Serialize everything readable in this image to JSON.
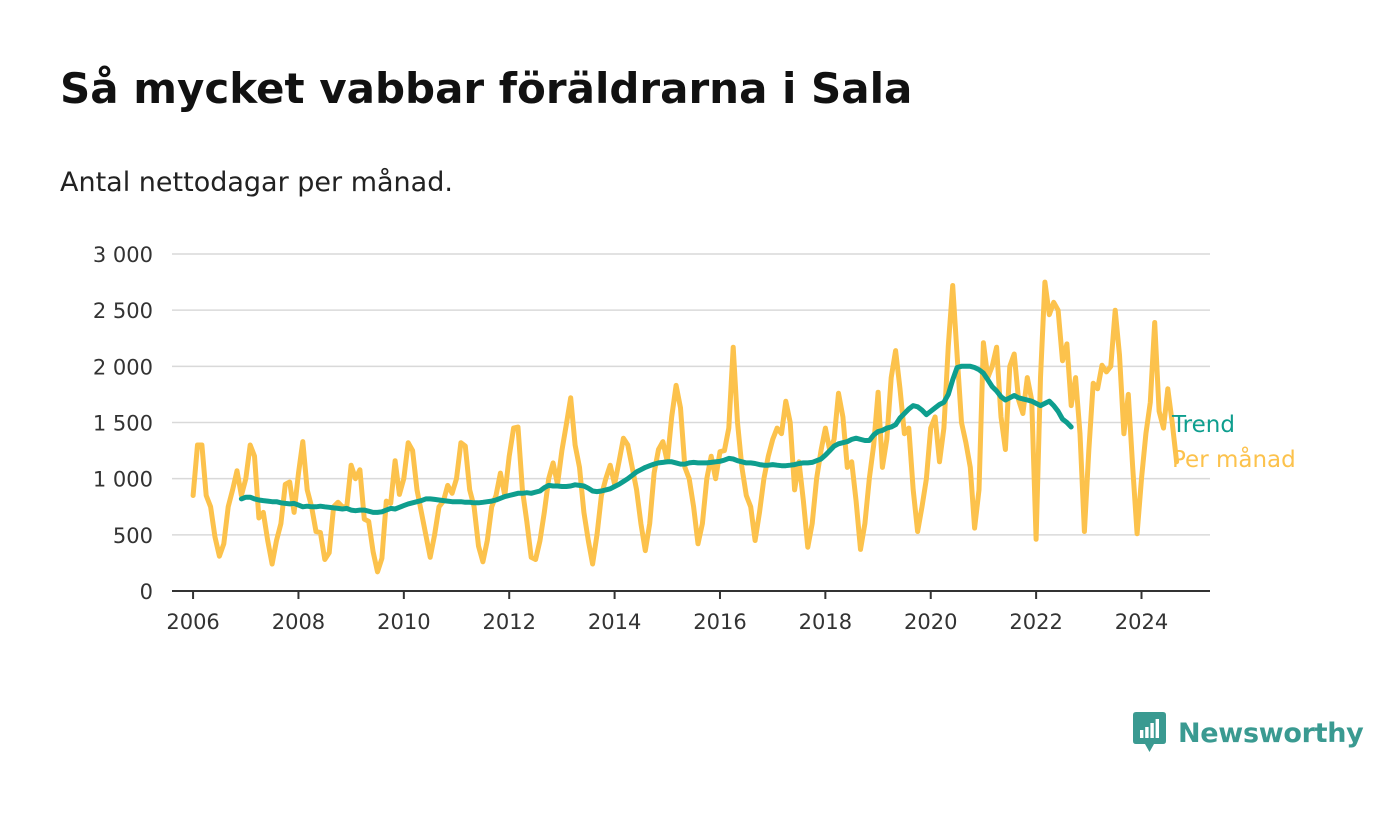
{
  "title": "Så mycket vabbar föräldrarna i Sala",
  "subtitle": "Antal nettodagar per månad.",
  "brand": {
    "name": "Newsworthy",
    "icon": "newsworthy-logo-icon"
  },
  "colors": {
    "trend": "#0e9e8e",
    "monthly": "#fcc24c",
    "grid": "#d9d9d9",
    "axis": "#333333",
    "brand": "#3a9a91"
  },
  "chart_data": {
    "type": "line",
    "title": "Så mycket vabbar föräldrarna i Sala",
    "subtitle": "Antal nettodagar per månad.",
    "xlabel": "",
    "ylabel": "",
    "ylim": [
      0,
      3000
    ],
    "yticks": [
      0,
      500,
      1000,
      1500,
      2000,
      2500,
      3000
    ],
    "ytick_labels": [
      "0",
      "500",
      "1 000",
      "1 500",
      "2 000",
      "2 500",
      "3 000"
    ],
    "xlim": [
      2005.6,
      2025.3
    ],
    "xticks": [
      "2006",
      "2008",
      "2010",
      "2012",
      "2014",
      "2016",
      "2018",
      "2020",
      "2022",
      "2024"
    ],
    "grid": true,
    "legend": "right-end labels",
    "series": [
      {
        "name": "Per månad",
        "start": "2006-01",
        "frequency": "monthly",
        "values": [
          850,
          1300,
          1300,
          850,
          750,
          480,
          310,
          420,
          750,
          900,
          1070,
          850,
          1000,
          1300,
          1200,
          650,
          700,
          450,
          240,
          450,
          600,
          950,
          970,
          700,
          1050,
          1330,
          900,
          750,
          530,
          520,
          280,
          340,
          750,
          790,
          750,
          750,
          1120,
          1000,
          1080,
          640,
          620,
          350,
          170,
          290,
          800,
          780,
          1160,
          860,
          1000,
          1320,
          1250,
          900,
          700,
          500,
          300,
          500,
          750,
          800,
          940,
          870,
          1000,
          1320,
          1290,
          900,
          750,
          400,
          260,
          450,
          750,
          850,
          1050,
          850,
          1200,
          1450,
          1460,
          900,
          620,
          300,
          280,
          450,
          700,
          1000,
          1140,
          950,
          1250,
          1480,
          1720,
          1300,
          1100,
          700,
          450,
          240,
          500,
          850,
          1000,
          1120,
          950,
          1150,
          1360,
          1300,
          1100,
          900,
          600,
          360,
          600,
          1050,
          1260,
          1330,
          1150,
          1550,
          1830,
          1630,
          1100,
          1000,
          750,
          420,
          600,
          1000,
          1200,
          1000,
          1240,
          1250,
          1450,
          2170,
          1500,
          1100,
          850,
          750,
          450,
          700,
          1000,
          1200,
          1350,
          1450,
          1400,
          1690,
          1500,
          900,
          1150,
          800,
          390,
          600,
          1000,
          1250,
          1450,
          1250,
          1350,
          1760,
          1550,
          1100,
          1150,
          800,
          370,
          600,
          1000,
          1300,
          1770,
          1100,
          1350,
          1900,
          2140,
          1800,
          1400,
          1450,
          900,
          530,
          750,
          1000,
          1450,
          1550,
          1150,
          1450,
          2180,
          2720,
          2100,
          1500,
          1320,
          1100,
          560,
          900,
          2210,
          1900,
          2000,
          2170,
          1550,
          1260,
          2000,
          2110,
          1700,
          1580,
          1900,
          1700,
          460,
          1900,
          2750,
          2460,
          2570,
          2500,
          2050,
          2200,
          1650,
          1900,
          1400,
          530,
          1250,
          1850,
          1800,
          2010,
          1950,
          2000,
          2500,
          2100,
          1400,
          1750,
          1100,
          510,
          1000,
          1400,
          1680,
          2390,
          1600,
          1450,
          1800,
          1500,
          1150
        ]
      },
      {
        "name": "Trend",
        "start": "2006-12",
        "frequency": "monthly",
        "values": [
          820,
          835,
          835,
          820,
          810,
          805,
          800,
          795,
          795,
          785,
          780,
          775,
          780,
          765,
          750,
          755,
          750,
          750,
          755,
          750,
          745,
          740,
          735,
          730,
          735,
          720,
          715,
          720,
          720,
          710,
          700,
          700,
          705,
          720,
          735,
          730,
          745,
          760,
          775,
          785,
          795,
          805,
          820,
          820,
          815,
          810,
          805,
          800,
          795,
          795,
          795,
          790,
          790,
          785,
          785,
          790,
          795,
          800,
          810,
          825,
          840,
          850,
          860,
          870,
          870,
          875,
          870,
          880,
          890,
          920,
          940,
          935,
          935,
          930,
          930,
          935,
          945,
          940,
          935,
          915,
          890,
          885,
          890,
          900,
          910,
          930,
          950,
          975,
          1000,
          1030,
          1060,
          1080,
          1100,
          1115,
          1130,
          1140,
          1145,
          1150,
          1150,
          1140,
          1130,
          1130,
          1140,
          1145,
          1140,
          1140,
          1140,
          1145,
          1150,
          1155,
          1165,
          1180,
          1175,
          1160,
          1150,
          1140,
          1140,
          1135,
          1125,
          1120,
          1120,
          1125,
          1120,
          1115,
          1115,
          1120,
          1125,
          1135,
          1140,
          1140,
          1145,
          1160,
          1175,
          1210,
          1250,
          1290,
          1310,
          1320,
          1330,
          1350,
          1360,
          1350,
          1340,
          1340,
          1390,
          1420,
          1430,
          1450,
          1460,
          1480,
          1540,
          1580,
          1620,
          1650,
          1640,
          1610,
          1570,
          1600,
          1630,
          1660,
          1680,
          1750,
          1880,
          1990,
          2000,
          2000,
          2000,
          1990,
          1970,
          1940,
          1880,
          1820,
          1780,
          1730,
          1700,
          1720,
          1740,
          1720,
          1710,
          1700,
          1690,
          1670,
          1650,
          1670,
          1690,
          1650,
          1600,
          1530,
          1500,
          1460
        ]
      }
    ]
  }
}
